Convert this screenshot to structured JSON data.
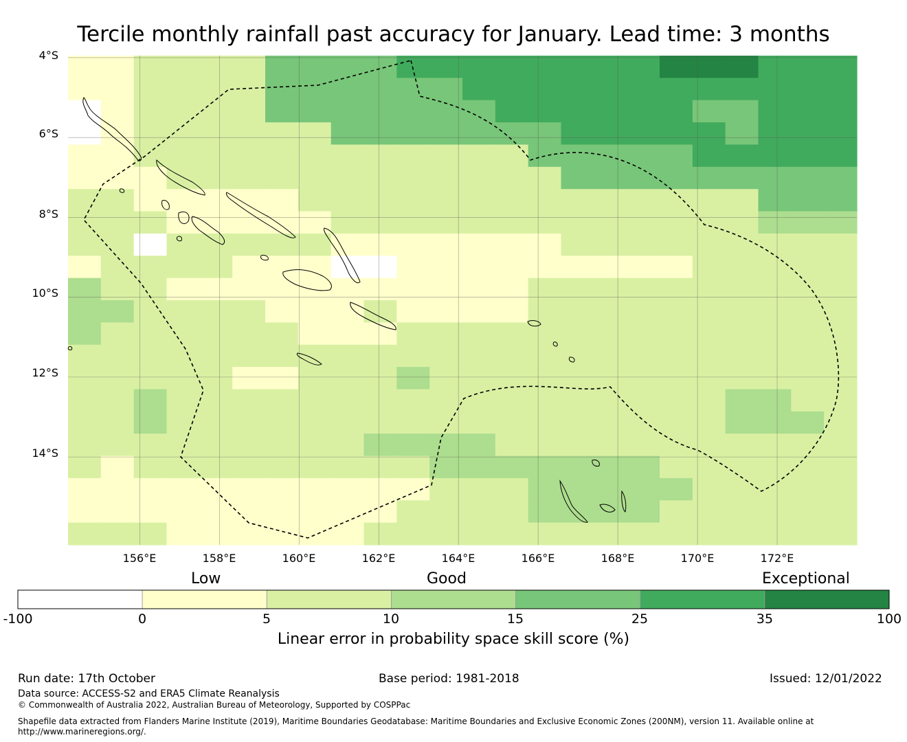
{
  "title": "Tercile monthly rainfall past accuracy for January. Lead time: 3 months",
  "map": {
    "lon_range": [
      154.2,
      174.0
    ],
    "lat_range": [
      -16.2,
      -3.95
    ],
    "lat_ticks": [
      "4°S",
      "6°S",
      "8°S",
      "10°S",
      "12°S",
      "14°S"
    ],
    "lon_ticks": [
      "156°E",
      "158°E",
      "160°E",
      "162°E",
      "164°E",
      "166°E",
      "168°E",
      "170°E",
      "172°E"
    ],
    "grid": true,
    "eez_boundary": "dashed black line"
  },
  "legend": {
    "categories": {
      "low": "Low",
      "good": "Good",
      "exceptional": "Exceptional"
    },
    "ticks": [
      "-100",
      "0",
      "5",
      "10",
      "15",
      "25",
      "35",
      "100"
    ],
    "colors": [
      "#ffffff",
      "#ffffcc",
      "#d9f0a3",
      "#addd8e",
      "#78c679",
      "#41ab5d",
      "#238443"
    ],
    "title": "Linear error in probability space skill score (%)"
  },
  "footer": {
    "run_date": "Run date: 17th October",
    "base_period": "Base period: 1981-2018",
    "issued": "Issued: 12/01/2022",
    "data_source": "Data source: ACCESS-S2 and ERA5 Climate Reanalysis",
    "copyright": "© Commonwealth of Australia 2022, Australian Bureau of Meteorology, Supported by COSPPac",
    "shapefile_note_1": "Shapefile data extracted from Flanders Marine Institute (2019), Maritime Boundaries Geodatabase: Maritime Boundaries and Exclusive Economic Zones (200NM), version 11. Available online at",
    "shapefile_note_2": "http://www.marineregions.org/."
  }
}
